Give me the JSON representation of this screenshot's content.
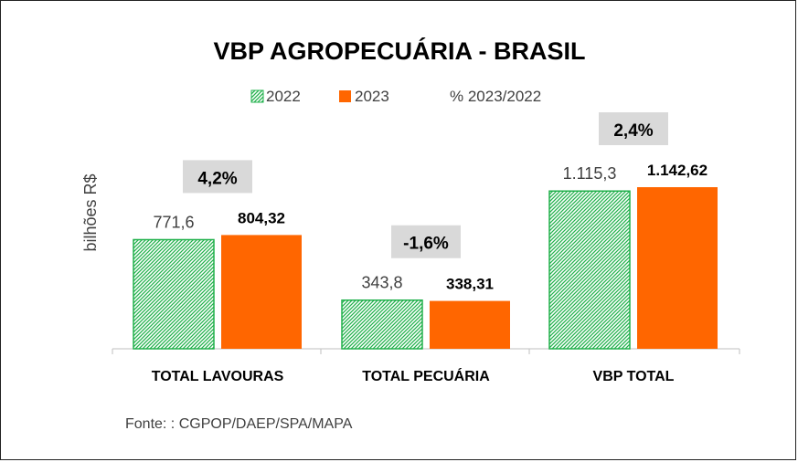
{
  "chart_data": {
    "type": "bar",
    "title": "VBP AGROPECUÁRIA - BRASIL",
    "ylabel": "bilhões R$",
    "categories": [
      "TOTAL LAVOURAS",
      "TOTAL PECUÁRIA",
      "VBP TOTAL"
    ],
    "series": [
      {
        "name": "2022",
        "values": [
          771.6,
          343.8,
          1115.3
        ],
        "labels": [
          "771,6",
          "343,8",
          "1.115,3"
        ],
        "color": "#22b14c",
        "pattern": "hatched"
      },
      {
        "name": "2023",
        "values": [
          804.32,
          338.31,
          1142.62
        ],
        "labels": [
          "804,32",
          "338,31",
          "1.142,62"
        ],
        "color": "#ff6600"
      }
    ],
    "change_label": "% 2023/2022",
    "changes": [
      "4,2%",
      "-1,6%",
      "2,4%"
    ],
    "ylim": [
      0,
      1300
    ],
    "grid": false,
    "legend_position": "top"
  },
  "source": "Fonte: : CGPOP/DAEP/SPA/MAPA",
  "colors": {
    "green": "#22b14c",
    "orange": "#ff6600",
    "change_box": "#d9d9d9"
  }
}
